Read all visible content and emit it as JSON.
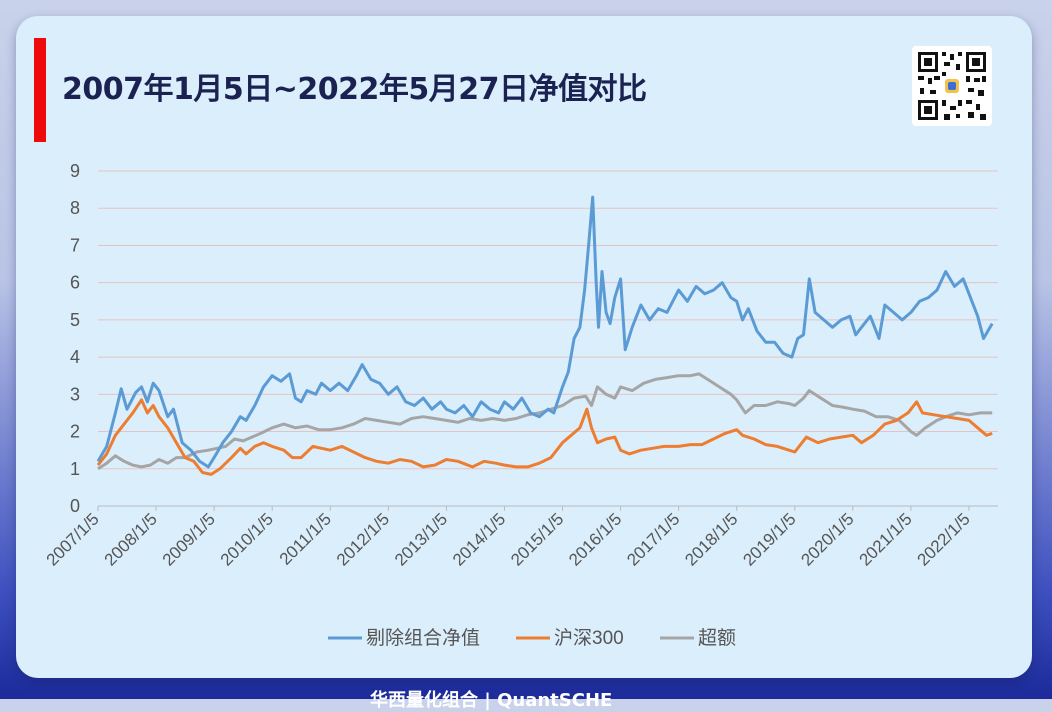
{
  "title": "2007年1月5日~2022年5月27日净值对比",
  "footer_text": "华西量化组合 | QuantSCHE",
  "colors": {
    "series_1": "#5b9bd5",
    "series_2": "#ed7d31",
    "series_3": "#a5a5a5",
    "title_bar": "#ee0a0a",
    "grid": "#e6c3c3"
  },
  "chart_data": {
    "type": "line",
    "title": "",
    "xlabel": "",
    "ylabel": "",
    "ylim": [
      0,
      9
    ],
    "y_ticks": [
      "0",
      "1",
      "2",
      "3",
      "4",
      "5",
      "6",
      "7",
      "8",
      "9"
    ],
    "x_ticks": [
      "2007/1/5",
      "2008/1/5",
      "2009/1/5",
      "2010/1/5",
      "2011/1/5",
      "2012/1/5",
      "2013/1/5",
      "2014/1/5",
      "2015/1/5",
      "2016/1/5",
      "2017/1/5",
      "2018/1/5",
      "2019/1/5",
      "2020/1/5",
      "2021/1/5",
      "2022/1/5"
    ],
    "grid": true,
    "legend_position": "bottom",
    "series": [
      {
        "name": "剔除组合净值",
        "points": [
          [
            2007.0,
            1.2
          ],
          [
            2007.15,
            1.6
          ],
          [
            2007.3,
            2.5
          ],
          [
            2007.4,
            3.15
          ],
          [
            2007.5,
            2.6
          ],
          [
            2007.65,
            3.05
          ],
          [
            2007.75,
            3.2
          ],
          [
            2007.85,
            2.8
          ],
          [
            2007.95,
            3.3
          ],
          [
            2008.05,
            3.1
          ],
          [
            2008.2,
            2.4
          ],
          [
            2008.3,
            2.6
          ],
          [
            2008.45,
            1.7
          ],
          [
            2008.6,
            1.5
          ],
          [
            2008.75,
            1.2
          ],
          [
            2008.9,
            1.05
          ],
          [
            2009.0,
            1.3
          ],
          [
            2009.15,
            1.7
          ],
          [
            2009.3,
            2.0
          ],
          [
            2009.45,
            2.4
          ],
          [
            2009.55,
            2.3
          ],
          [
            2009.7,
            2.7
          ],
          [
            2009.85,
            3.2
          ],
          [
            2010.0,
            3.5
          ],
          [
            2010.15,
            3.35
          ],
          [
            2010.3,
            3.55
          ],
          [
            2010.4,
            2.9
          ],
          [
            2010.5,
            2.8
          ],
          [
            2010.6,
            3.1
          ],
          [
            2010.75,
            3.0
          ],
          [
            2010.85,
            3.3
          ],
          [
            2011.0,
            3.1
          ],
          [
            2011.15,
            3.3
          ],
          [
            2011.3,
            3.1
          ],
          [
            2011.45,
            3.5
          ],
          [
            2011.55,
            3.8
          ],
          [
            2011.7,
            3.4
          ],
          [
            2011.85,
            3.3
          ],
          [
            2012.0,
            3.0
          ],
          [
            2012.15,
            3.2
          ],
          [
            2012.3,
            2.8
          ],
          [
            2012.45,
            2.7
          ],
          [
            2012.6,
            2.9
          ],
          [
            2012.75,
            2.6
          ],
          [
            2012.9,
            2.8
          ],
          [
            2013.0,
            2.6
          ],
          [
            2013.15,
            2.5
          ],
          [
            2013.3,
            2.7
          ],
          [
            2013.45,
            2.4
          ],
          [
            2013.6,
            2.8
          ],
          [
            2013.75,
            2.6
          ],
          [
            2013.9,
            2.5
          ],
          [
            2014.0,
            2.8
          ],
          [
            2014.15,
            2.6
          ],
          [
            2014.3,
            2.9
          ],
          [
            2014.45,
            2.5
          ],
          [
            2014.6,
            2.4
          ],
          [
            2014.75,
            2.6
          ],
          [
            2014.85,
            2.5
          ],
          [
            2015.0,
            3.2
          ],
          [
            2015.1,
            3.6
          ],
          [
            2015.2,
            4.5
          ],
          [
            2015.3,
            4.8
          ],
          [
            2015.38,
            5.8
          ],
          [
            2015.45,
            7.0
          ],
          [
            2015.52,
            8.3
          ],
          [
            2015.58,
            6.0
          ],
          [
            2015.62,
            4.8
          ],
          [
            2015.68,
            6.3
          ],
          [
            2015.75,
            5.2
          ],
          [
            2015.82,
            4.9
          ],
          [
            2015.9,
            5.6
          ],
          [
            2016.0,
            6.1
          ],
          [
            2016.08,
            4.2
          ],
          [
            2016.2,
            4.8
          ],
          [
            2016.35,
            5.4
          ],
          [
            2016.5,
            5.0
          ],
          [
            2016.65,
            5.3
          ],
          [
            2016.8,
            5.2
          ],
          [
            2017.0,
            5.8
          ],
          [
            2017.15,
            5.5
          ],
          [
            2017.3,
            5.9
          ],
          [
            2017.45,
            5.7
          ],
          [
            2017.6,
            5.8
          ],
          [
            2017.75,
            6.0
          ],
          [
            2017.9,
            5.6
          ],
          [
            2018.0,
            5.5
          ],
          [
            2018.1,
            5.0
          ],
          [
            2018.2,
            5.3
          ],
          [
            2018.35,
            4.7
          ],
          [
            2018.5,
            4.4
          ],
          [
            2018.65,
            4.4
          ],
          [
            2018.8,
            4.1
          ],
          [
            2018.95,
            4.0
          ],
          [
            2019.05,
            4.5
          ],
          [
            2019.15,
            4.6
          ],
          [
            2019.25,
            6.1
          ],
          [
            2019.35,
            5.2
          ],
          [
            2019.5,
            5.0
          ],
          [
            2019.65,
            4.8
          ],
          [
            2019.8,
            5.0
          ],
          [
            2019.95,
            5.1
          ],
          [
            2020.05,
            4.6
          ],
          [
            2020.15,
            4.8
          ],
          [
            2020.3,
            5.1
          ],
          [
            2020.45,
            4.5
          ],
          [
            2020.55,
            5.4
          ],
          [
            2020.7,
            5.2
          ],
          [
            2020.85,
            5.0
          ],
          [
            2021.0,
            5.2
          ],
          [
            2021.15,
            5.5
          ],
          [
            2021.3,
            5.6
          ],
          [
            2021.45,
            5.8
          ],
          [
            2021.6,
            6.3
          ],
          [
            2021.75,
            5.9
          ],
          [
            2021.9,
            6.1
          ],
          [
            2022.0,
            5.7
          ],
          [
            2022.15,
            5.1
          ],
          [
            2022.25,
            4.5
          ],
          [
            2022.4,
            4.9
          ]
        ]
      },
      {
        "name": "沪深300",
        "points": [
          [
            2007.0,
            1.1
          ],
          [
            2007.15,
            1.4
          ],
          [
            2007.3,
            1.9
          ],
          [
            2007.45,
            2.2
          ],
          [
            2007.6,
            2.5
          ],
          [
            2007.75,
            2.85
          ],
          [
            2007.85,
            2.5
          ],
          [
            2007.95,
            2.7
          ],
          [
            2008.05,
            2.4
          ],
          [
            2008.2,
            2.1
          ],
          [
            2008.35,
            1.7
          ],
          [
            2008.5,
            1.3
          ],
          [
            2008.65,
            1.2
          ],
          [
            2008.8,
            0.9
          ],
          [
            2008.95,
            0.85
          ],
          [
            2009.1,
            1.0
          ],
          [
            2009.3,
            1.3
          ],
          [
            2009.45,
            1.55
          ],
          [
            2009.55,
            1.4
          ],
          [
            2009.7,
            1.6
          ],
          [
            2009.85,
            1.7
          ],
          [
            2010.0,
            1.6
          ],
          [
            2010.2,
            1.5
          ],
          [
            2010.35,
            1.3
          ],
          [
            2010.5,
            1.3
          ],
          [
            2010.7,
            1.6
          ],
          [
            2010.85,
            1.55
          ],
          [
            2011.0,
            1.5
          ],
          [
            2011.2,
            1.6
          ],
          [
            2011.4,
            1.45
          ],
          [
            2011.6,
            1.3
          ],
          [
            2011.8,
            1.2
          ],
          [
            2012.0,
            1.15
          ],
          [
            2012.2,
            1.25
          ],
          [
            2012.4,
            1.2
          ],
          [
            2012.6,
            1.05
          ],
          [
            2012.8,
            1.1
          ],
          [
            2013.0,
            1.25
          ],
          [
            2013.2,
            1.2
          ],
          [
            2013.45,
            1.05
          ],
          [
            2013.65,
            1.2
          ],
          [
            2013.85,
            1.15
          ],
          [
            2014.0,
            1.1
          ],
          [
            2014.2,
            1.05
          ],
          [
            2014.4,
            1.05
          ],
          [
            2014.6,
            1.15
          ],
          [
            2014.8,
            1.3
          ],
          [
            2015.0,
            1.7
          ],
          [
            2015.15,
            1.9
          ],
          [
            2015.3,
            2.1
          ],
          [
            2015.42,
            2.6
          ],
          [
            2015.5,
            2.1
          ],
          [
            2015.6,
            1.7
          ],
          [
            2015.75,
            1.8
          ],
          [
            2015.9,
            1.85
          ],
          [
            2016.0,
            1.5
          ],
          [
            2016.15,
            1.4
          ],
          [
            2016.35,
            1.5
          ],
          [
            2016.55,
            1.55
          ],
          [
            2016.75,
            1.6
          ],
          [
            2017.0,
            1.6
          ],
          [
            2017.2,
            1.65
          ],
          [
            2017.4,
            1.65
          ],
          [
            2017.6,
            1.8
          ],
          [
            2017.8,
            1.95
          ],
          [
            2018.0,
            2.05
          ],
          [
            2018.1,
            1.9
          ],
          [
            2018.3,
            1.8
          ],
          [
            2018.5,
            1.65
          ],
          [
            2018.7,
            1.6
          ],
          [
            2018.9,
            1.5
          ],
          [
            2019.0,
            1.45
          ],
          [
            2019.2,
            1.85
          ],
          [
            2019.4,
            1.7
          ],
          [
            2019.6,
            1.8
          ],
          [
            2019.8,
            1.85
          ],
          [
            2020.0,
            1.9
          ],
          [
            2020.15,
            1.7
          ],
          [
            2020.35,
            1.9
          ],
          [
            2020.55,
            2.2
          ],
          [
            2020.75,
            2.3
          ],
          [
            2020.95,
            2.5
          ],
          [
            2021.1,
            2.8
          ],
          [
            2021.2,
            2.5
          ],
          [
            2021.4,
            2.45
          ],
          [
            2021.6,
            2.4
          ],
          [
            2021.8,
            2.35
          ],
          [
            2022.0,
            2.3
          ],
          [
            2022.15,
            2.1
          ],
          [
            2022.3,
            1.9
          ],
          [
            2022.4,
            1.95
          ]
        ]
      },
      {
        "name": "超额",
        "points": [
          [
            2007.0,
            1.0
          ],
          [
            2007.15,
            1.15
          ],
          [
            2007.3,
            1.35
          ],
          [
            2007.45,
            1.2
          ],
          [
            2007.6,
            1.1
          ],
          [
            2007.75,
            1.05
          ],
          [
            2007.9,
            1.1
          ],
          [
            2008.05,
            1.25
          ],
          [
            2008.2,
            1.15
          ],
          [
            2008.35,
            1.3
          ],
          [
            2008.5,
            1.3
          ],
          [
            2008.7,
            1.45
          ],
          [
            2008.9,
            1.5
          ],
          [
            2009.05,
            1.55
          ],
          [
            2009.2,
            1.6
          ],
          [
            2009.35,
            1.8
          ],
          [
            2009.5,
            1.75
          ],
          [
            2009.65,
            1.85
          ],
          [
            2009.8,
            1.95
          ],
          [
            2010.0,
            2.1
          ],
          [
            2010.2,
            2.2
          ],
          [
            2010.4,
            2.1
          ],
          [
            2010.6,
            2.15
          ],
          [
            2010.8,
            2.05
          ],
          [
            2011.0,
            2.05
          ],
          [
            2011.2,
            2.1
          ],
          [
            2011.4,
            2.2
          ],
          [
            2011.6,
            2.35
          ],
          [
            2011.8,
            2.3
          ],
          [
            2012.0,
            2.25
          ],
          [
            2012.2,
            2.2
          ],
          [
            2012.4,
            2.35
          ],
          [
            2012.6,
            2.4
          ],
          [
            2012.8,
            2.35
          ],
          [
            2013.0,
            2.3
          ],
          [
            2013.2,
            2.25
          ],
          [
            2013.4,
            2.35
          ],
          [
            2013.6,
            2.3
          ],
          [
            2013.8,
            2.35
          ],
          [
            2014.0,
            2.3
          ],
          [
            2014.2,
            2.35
          ],
          [
            2014.4,
            2.45
          ],
          [
            2014.6,
            2.5
          ],
          [
            2014.8,
            2.6
          ],
          [
            2015.0,
            2.7
          ],
          [
            2015.2,
            2.9
          ],
          [
            2015.4,
            2.95
          ],
          [
            2015.5,
            2.7
          ],
          [
            2015.6,
            3.2
          ],
          [
            2015.75,
            3.0
          ],
          [
            2015.9,
            2.9
          ],
          [
            2016.0,
            3.2
          ],
          [
            2016.2,
            3.1
          ],
          [
            2016.4,
            3.3
          ],
          [
            2016.6,
            3.4
          ],
          [
            2016.8,
            3.45
          ],
          [
            2017.0,
            3.5
          ],
          [
            2017.2,
            3.5
          ],
          [
            2017.35,
            3.55
          ],
          [
            2017.5,
            3.4
          ],
          [
            2017.7,
            3.2
          ],
          [
            2017.9,
            3.0
          ],
          [
            2018.0,
            2.85
          ],
          [
            2018.15,
            2.5
          ],
          [
            2018.3,
            2.7
          ],
          [
            2018.5,
            2.7
          ],
          [
            2018.7,
            2.8
          ],
          [
            2018.9,
            2.75
          ],
          [
            2019.0,
            2.7
          ],
          [
            2019.15,
            2.9
          ],
          [
            2019.25,
            3.1
          ],
          [
            2019.45,
            2.9
          ],
          [
            2019.65,
            2.7
          ],
          [
            2019.85,
            2.65
          ],
          [
            2020.0,
            2.6
          ],
          [
            2020.2,
            2.55
          ],
          [
            2020.4,
            2.4
          ],
          [
            2020.6,
            2.4
          ],
          [
            2020.8,
            2.3
          ],
          [
            2021.0,
            2.0
          ],
          [
            2021.1,
            1.9
          ],
          [
            2021.25,
            2.1
          ],
          [
            2021.45,
            2.3
          ],
          [
            2021.6,
            2.4
          ],
          [
            2021.8,
            2.5
          ],
          [
            2022.0,
            2.45
          ],
          [
            2022.2,
            2.5
          ],
          [
            2022.4,
            2.5
          ]
        ]
      }
    ]
  }
}
